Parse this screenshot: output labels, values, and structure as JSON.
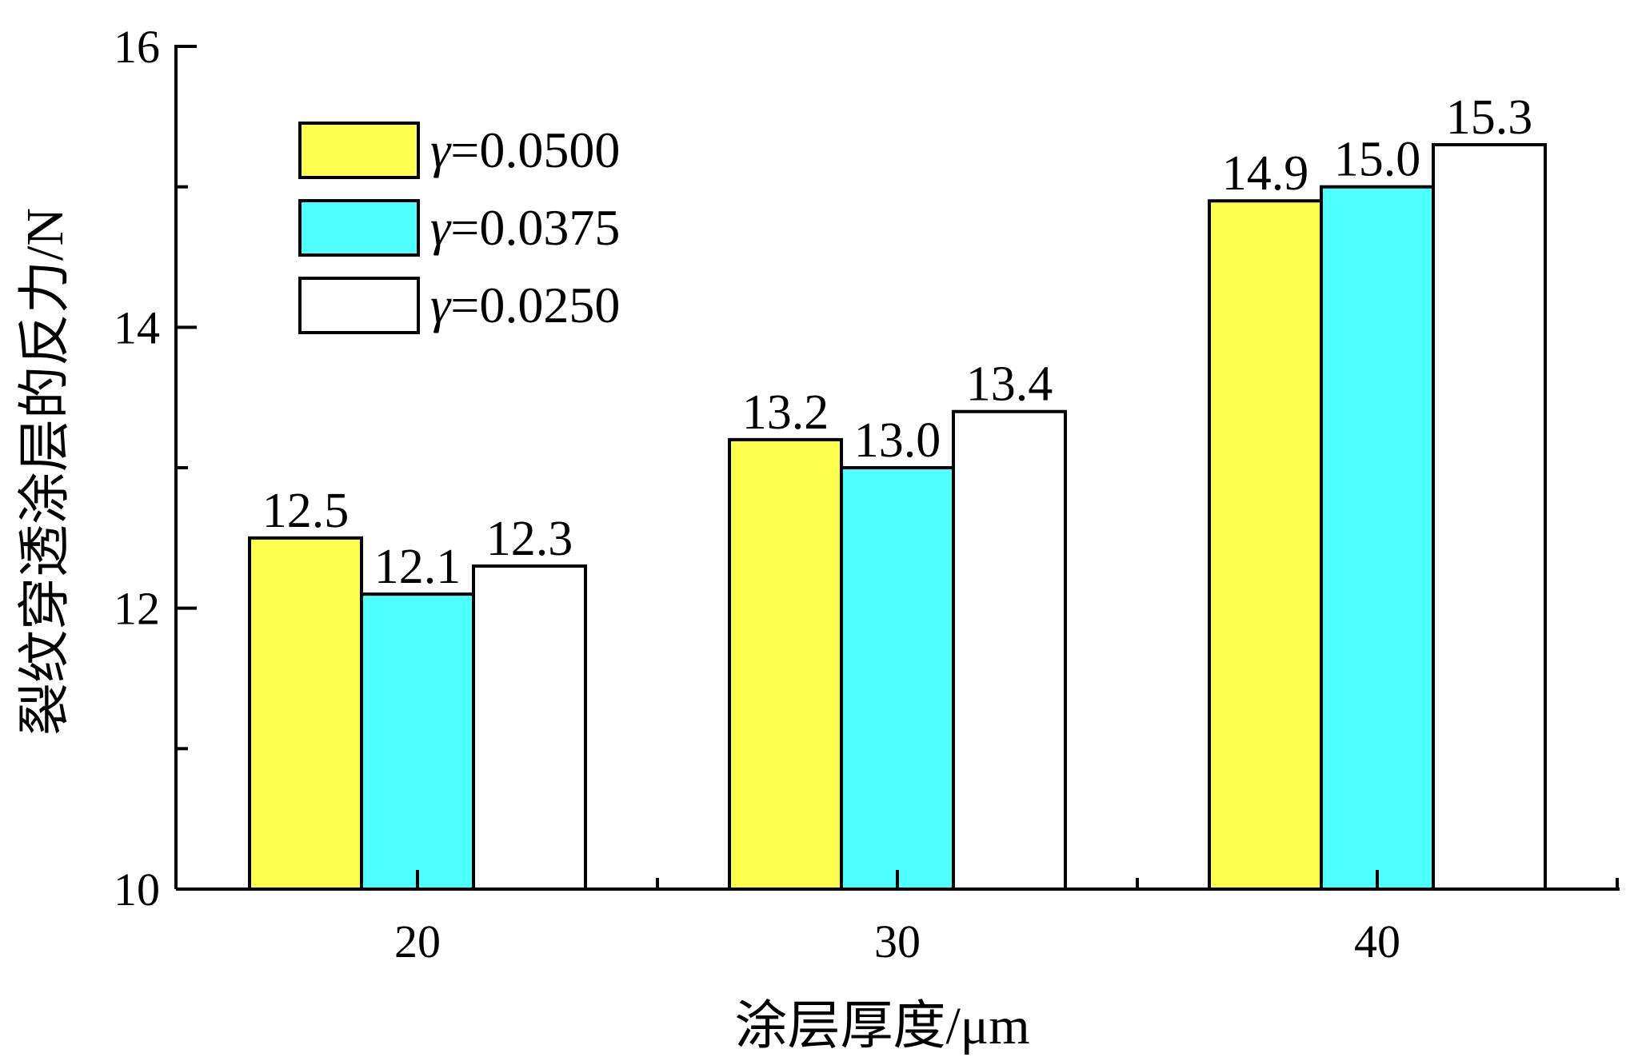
{
  "chart_data": {
    "type": "bar",
    "title": "",
    "xlabel": "涂层厚度/μm",
    "ylabel": "裂纹穿透涂层的反力/N",
    "categories": [
      "20",
      "30",
      "40"
    ],
    "ylim": [
      10,
      16
    ],
    "yticks": [
      10,
      12,
      14,
      16
    ],
    "yticks_minor": [
      11,
      13,
      15
    ],
    "grid": false,
    "legend_position": "top-left",
    "series": [
      {
        "name": "γ=0.0500",
        "symbol": "γ",
        "value_text": "=0.0500",
        "color": "#ffff4d",
        "values": [
          12.5,
          13.2,
          14.9
        ],
        "labels": [
          "12.5",
          "13.2",
          "14.9"
        ]
      },
      {
        "name": "γ=0.0375",
        "symbol": "γ",
        "value_text": "=0.0375",
        "color": "#4dffff",
        "values": [
          12.1,
          13.0,
          15.0
        ],
        "labels": [
          "12.1",
          "13.0",
          "15.0"
        ]
      },
      {
        "name": "γ=0.0250",
        "symbol": "γ",
        "value_text": "=0.0250",
        "color": "#ffffff",
        "values": [
          12.3,
          13.4,
          15.3
        ],
        "labels": [
          "12.3",
          "13.4",
          "15.3"
        ]
      }
    ]
  }
}
